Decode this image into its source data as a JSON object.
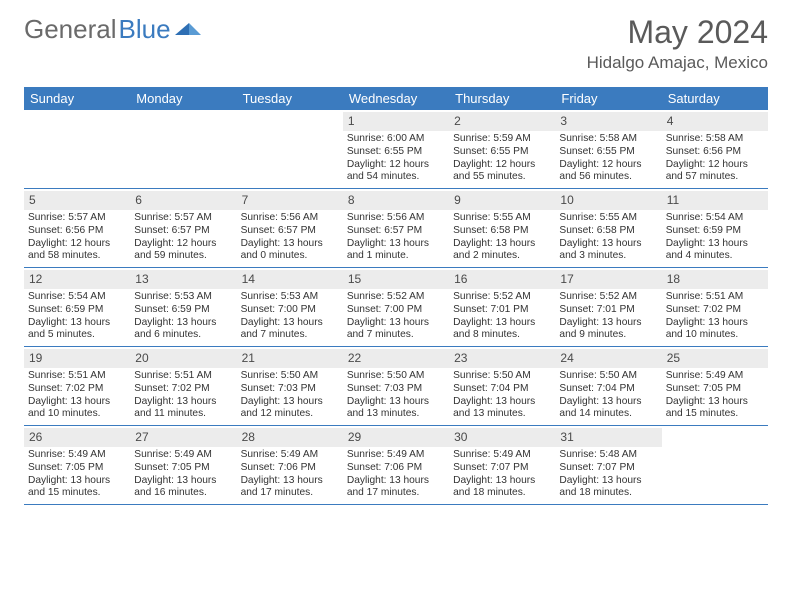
{
  "brand": {
    "part1": "General",
    "part2": "Blue"
  },
  "title": "May 2024",
  "location": "Hidalgo Amajac, Mexico",
  "colors": {
    "header_bg": "#3b7bbf",
    "header_text": "#ffffff",
    "daynum_bg": "#ececec",
    "text": "#333333",
    "rule": "#3b7bbf",
    "page_bg": "#ffffff"
  },
  "typography": {
    "title_fontsize": 32,
    "location_fontsize": 17,
    "dow_fontsize": 13,
    "daynum_fontsize": 12,
    "body_fontsize": 10
  },
  "dow": [
    "Sunday",
    "Monday",
    "Tuesday",
    "Wednesday",
    "Thursday",
    "Friday",
    "Saturday"
  ],
  "weeks": [
    [
      {
        "n": "",
        "sunrise": "",
        "sunset": "",
        "day1": "",
        "day2": ""
      },
      {
        "n": "",
        "sunrise": "",
        "sunset": "",
        "day1": "",
        "day2": ""
      },
      {
        "n": "",
        "sunrise": "",
        "sunset": "",
        "day1": "",
        "day2": ""
      },
      {
        "n": "1",
        "sunrise": "Sunrise: 6:00 AM",
        "sunset": "Sunset: 6:55 PM",
        "day1": "Daylight: 12 hours",
        "day2": "and 54 minutes."
      },
      {
        "n": "2",
        "sunrise": "Sunrise: 5:59 AM",
        "sunset": "Sunset: 6:55 PM",
        "day1": "Daylight: 12 hours",
        "day2": "and 55 minutes."
      },
      {
        "n": "3",
        "sunrise": "Sunrise: 5:58 AM",
        "sunset": "Sunset: 6:55 PM",
        "day1": "Daylight: 12 hours",
        "day2": "and 56 minutes."
      },
      {
        "n": "4",
        "sunrise": "Sunrise: 5:58 AM",
        "sunset": "Sunset: 6:56 PM",
        "day1": "Daylight: 12 hours",
        "day2": "and 57 minutes."
      }
    ],
    [
      {
        "n": "5",
        "sunrise": "Sunrise: 5:57 AM",
        "sunset": "Sunset: 6:56 PM",
        "day1": "Daylight: 12 hours",
        "day2": "and 58 minutes."
      },
      {
        "n": "6",
        "sunrise": "Sunrise: 5:57 AM",
        "sunset": "Sunset: 6:57 PM",
        "day1": "Daylight: 12 hours",
        "day2": "and 59 minutes."
      },
      {
        "n": "7",
        "sunrise": "Sunrise: 5:56 AM",
        "sunset": "Sunset: 6:57 PM",
        "day1": "Daylight: 13 hours",
        "day2": "and 0 minutes."
      },
      {
        "n": "8",
        "sunrise": "Sunrise: 5:56 AM",
        "sunset": "Sunset: 6:57 PM",
        "day1": "Daylight: 13 hours",
        "day2": "and 1 minute."
      },
      {
        "n": "9",
        "sunrise": "Sunrise: 5:55 AM",
        "sunset": "Sunset: 6:58 PM",
        "day1": "Daylight: 13 hours",
        "day2": "and 2 minutes."
      },
      {
        "n": "10",
        "sunrise": "Sunrise: 5:55 AM",
        "sunset": "Sunset: 6:58 PM",
        "day1": "Daylight: 13 hours",
        "day2": "and 3 minutes."
      },
      {
        "n": "11",
        "sunrise": "Sunrise: 5:54 AM",
        "sunset": "Sunset: 6:59 PM",
        "day1": "Daylight: 13 hours",
        "day2": "and 4 minutes."
      }
    ],
    [
      {
        "n": "12",
        "sunrise": "Sunrise: 5:54 AM",
        "sunset": "Sunset: 6:59 PM",
        "day1": "Daylight: 13 hours",
        "day2": "and 5 minutes."
      },
      {
        "n": "13",
        "sunrise": "Sunrise: 5:53 AM",
        "sunset": "Sunset: 6:59 PM",
        "day1": "Daylight: 13 hours",
        "day2": "and 6 minutes."
      },
      {
        "n": "14",
        "sunrise": "Sunrise: 5:53 AM",
        "sunset": "Sunset: 7:00 PM",
        "day1": "Daylight: 13 hours",
        "day2": "and 7 minutes."
      },
      {
        "n": "15",
        "sunrise": "Sunrise: 5:52 AM",
        "sunset": "Sunset: 7:00 PM",
        "day1": "Daylight: 13 hours",
        "day2": "and 7 minutes."
      },
      {
        "n": "16",
        "sunrise": "Sunrise: 5:52 AM",
        "sunset": "Sunset: 7:01 PM",
        "day1": "Daylight: 13 hours",
        "day2": "and 8 minutes."
      },
      {
        "n": "17",
        "sunrise": "Sunrise: 5:52 AM",
        "sunset": "Sunset: 7:01 PM",
        "day1": "Daylight: 13 hours",
        "day2": "and 9 minutes."
      },
      {
        "n": "18",
        "sunrise": "Sunrise: 5:51 AM",
        "sunset": "Sunset: 7:02 PM",
        "day1": "Daylight: 13 hours",
        "day2": "and 10 minutes."
      }
    ],
    [
      {
        "n": "19",
        "sunrise": "Sunrise: 5:51 AM",
        "sunset": "Sunset: 7:02 PM",
        "day1": "Daylight: 13 hours",
        "day2": "and 10 minutes."
      },
      {
        "n": "20",
        "sunrise": "Sunrise: 5:51 AM",
        "sunset": "Sunset: 7:02 PM",
        "day1": "Daylight: 13 hours",
        "day2": "and 11 minutes."
      },
      {
        "n": "21",
        "sunrise": "Sunrise: 5:50 AM",
        "sunset": "Sunset: 7:03 PM",
        "day1": "Daylight: 13 hours",
        "day2": "and 12 minutes."
      },
      {
        "n": "22",
        "sunrise": "Sunrise: 5:50 AM",
        "sunset": "Sunset: 7:03 PM",
        "day1": "Daylight: 13 hours",
        "day2": "and 13 minutes."
      },
      {
        "n": "23",
        "sunrise": "Sunrise: 5:50 AM",
        "sunset": "Sunset: 7:04 PM",
        "day1": "Daylight: 13 hours",
        "day2": "and 13 minutes."
      },
      {
        "n": "24",
        "sunrise": "Sunrise: 5:50 AM",
        "sunset": "Sunset: 7:04 PM",
        "day1": "Daylight: 13 hours",
        "day2": "and 14 minutes."
      },
      {
        "n": "25",
        "sunrise": "Sunrise: 5:49 AM",
        "sunset": "Sunset: 7:05 PM",
        "day1": "Daylight: 13 hours",
        "day2": "and 15 minutes."
      }
    ],
    [
      {
        "n": "26",
        "sunrise": "Sunrise: 5:49 AM",
        "sunset": "Sunset: 7:05 PM",
        "day1": "Daylight: 13 hours",
        "day2": "and 15 minutes."
      },
      {
        "n": "27",
        "sunrise": "Sunrise: 5:49 AM",
        "sunset": "Sunset: 7:05 PM",
        "day1": "Daylight: 13 hours",
        "day2": "and 16 minutes."
      },
      {
        "n": "28",
        "sunrise": "Sunrise: 5:49 AM",
        "sunset": "Sunset: 7:06 PM",
        "day1": "Daylight: 13 hours",
        "day2": "and 17 minutes."
      },
      {
        "n": "29",
        "sunrise": "Sunrise: 5:49 AM",
        "sunset": "Sunset: 7:06 PM",
        "day1": "Daylight: 13 hours",
        "day2": "and 17 minutes."
      },
      {
        "n": "30",
        "sunrise": "Sunrise: 5:49 AM",
        "sunset": "Sunset: 7:07 PM",
        "day1": "Daylight: 13 hours",
        "day2": "and 18 minutes."
      },
      {
        "n": "31",
        "sunrise": "Sunrise: 5:48 AM",
        "sunset": "Sunset: 7:07 PM",
        "day1": "Daylight: 13 hours",
        "day2": "and 18 minutes."
      },
      {
        "n": "",
        "sunrise": "",
        "sunset": "",
        "day1": "",
        "day2": ""
      }
    ]
  ]
}
